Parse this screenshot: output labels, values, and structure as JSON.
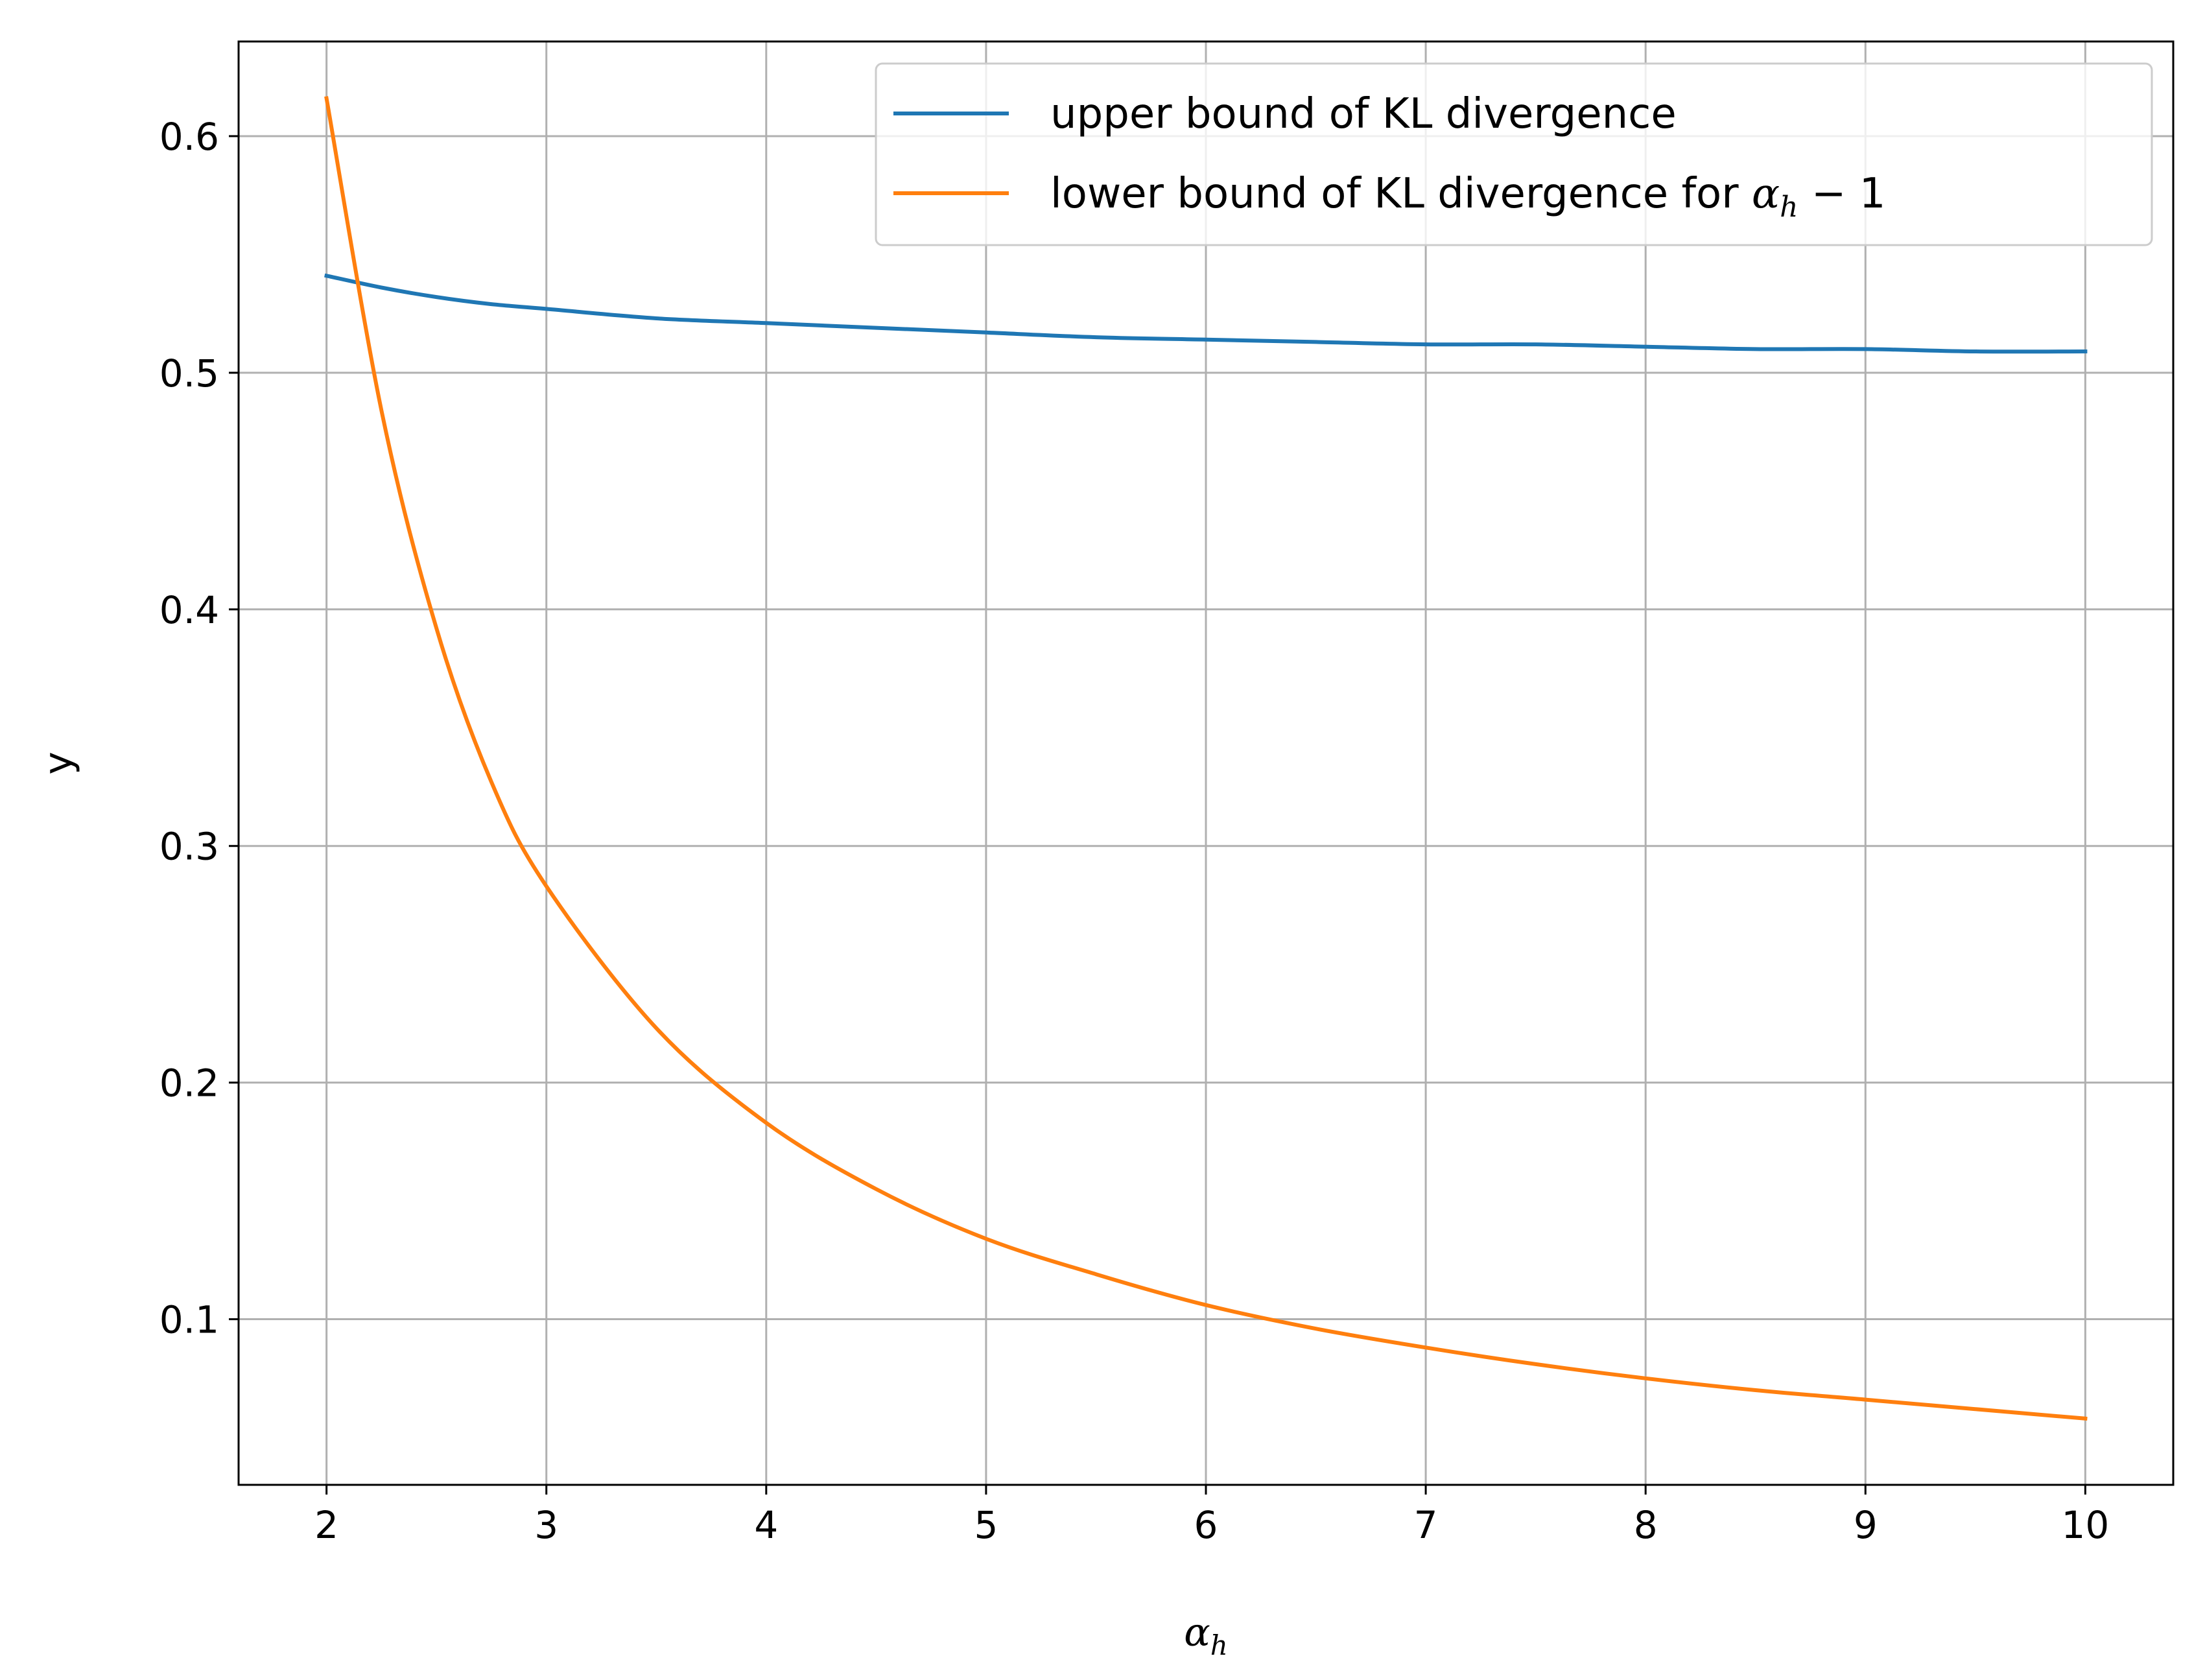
{
  "chart_data": {
    "type": "line",
    "xlabel": "α",
    "xlabel_sub": "h",
    "ylabel": "y",
    "xlim": [
      1.6,
      10.4
    ],
    "ylim": [
      0.03,
      0.64
    ],
    "x_ticks": [
      2,
      3,
      4,
      5,
      6,
      7,
      8,
      9,
      10
    ],
    "x_tick_labels": [
      "2",
      "3",
      "4",
      "5",
      "6",
      "7",
      "8",
      "9",
      "10"
    ],
    "y_ticks": [
      0.1,
      0.2,
      0.3,
      0.4,
      0.5,
      0.6
    ],
    "y_tick_labels": [
      "0.1",
      "0.2",
      "0.3",
      "0.4",
      "0.5",
      "0.6"
    ],
    "grid": true,
    "legend_position": "upper-right",
    "x": [
      2,
      2.25,
      2.5,
      2.75,
      3,
      3.5,
      4,
      4.5,
      5,
      5.5,
      6,
      6.5,
      7,
      7.5,
      8,
      8.5,
      9,
      9.5,
      10
    ],
    "series": [
      {
        "name": "upper bound of KL divergence",
        "color": "#1f77b4",
        "values": [
          0.541,
          0.536,
          0.532,
          0.529,
          0.527,
          0.523,
          0.521,
          0.519,
          0.517,
          0.515,
          0.514,
          0.513,
          0.512,
          0.512,
          0.511,
          0.51,
          0.51,
          0.509,
          0.509
        ]
      },
      {
        "name_prefix": "lower bound of KL divergence for ",
        "name_math": "α",
        "name_math_sub": "h",
        "name_suffix": " − 1",
        "color": "#ff7f0e",
        "values": [
          0.616,
          0.484,
          0.392,
          0.327,
          0.283,
          0.223,
          0.183,
          0.155,
          0.134,
          0.119,
          0.106,
          0.096,
          0.088,
          0.081,
          0.075,
          0.07,
          0.066,
          0.062,
          0.058
        ]
      }
    ]
  }
}
